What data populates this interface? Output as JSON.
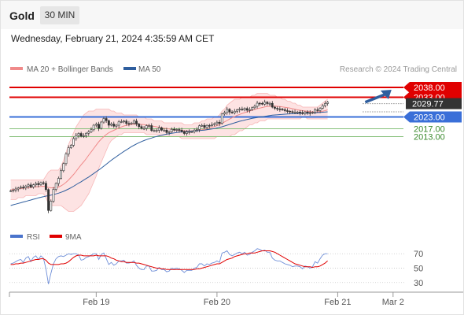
{
  "header": {
    "instrument": "Gold",
    "timeframe": "30 MIN",
    "datetime": "Wednesday, February 21, 2024 4:35:59 AM CET"
  },
  "legend": {
    "items": [
      {
        "label": "MA 20 + Bollinger Bands",
        "color": "#f08a8a"
      },
      {
        "label": "MA 50",
        "color": "#2f5e9e"
      }
    ],
    "credit": "Research © 2024 Trading Central"
  },
  "rsi_legend": {
    "items": [
      {
        "label": "RSI",
        "color": "#4a74cc"
      },
      {
        "label": "9MA",
        "color": "#e00000"
      }
    ]
  },
  "colors": {
    "resistance": "#e00000",
    "pivot": "#3a6fd8",
    "support": "#86c07a",
    "last": "#333333",
    "arrow": "#2f5e9e",
    "candle": "#333333",
    "band_fill": "#fde3e3"
  },
  "chart_data": [
    {
      "type": "candlestick",
      "title": "",
      "ylim": [
        1968,
        2042
      ],
      "x_tick_labels": [
        {
          "label": "Feb 19",
          "bar": 34
        },
        {
          "label": "Feb 20",
          "bar": 82
        },
        {
          "label": "Feb 21",
          "bar": 130
        },
        {
          "label": "Mar 2",
          "bar": 152
        }
      ],
      "bars_total": 156,
      "current_bar": 140,
      "key_levels": [
        {
          "label": "2038.00",
          "value": 2038.0,
          "role": "resistance"
        },
        {
          "label": "2033.00",
          "value": 2033.0,
          "role": "resistance"
        },
        {
          "label": "2029.77",
          "value": 2029.77,
          "role": "last"
        },
        {
          "label": "2023.00",
          "value": 2023.0,
          "role": "pivot"
        },
        {
          "label": "2017.00",
          "value": 2017.0,
          "role": "support"
        },
        {
          "label": "2013.00",
          "value": 2013.0,
          "role": "support"
        }
      ],
      "forecast": {
        "from": 2030.5,
        "to": 2038.0,
        "bars": 12
      },
      "close": [
        1985.5,
        1985.8,
        1986.4,
        1986.9,
        1987.3,
        1987.0,
        1987.9,
        1988.5,
        1987.4,
        1988.5,
        1989.2,
        1988.6,
        1989.6,
        1989.3,
        1986.1,
        1975.5,
        1980.2,
        1986.2,
        1989.2,
        1991.8,
        1995.7,
        1999.3,
        2004.2,
        2007.4,
        2008.6,
        2012.0,
        2013.6,
        2014.6,
        2013.2,
        2013.5,
        2014.7,
        2015.4,
        2016.5,
        2018.8,
        2019.3,
        2017.2,
        2020.4,
        2022.2,
        2021.1,
        2018.8,
        2019.4,
        2018.3,
        2018.8,
        2020.5,
        2020.6,
        2020.9,
        2019.7,
        2019.6,
        2019.9,
        2020.9,
        2019.4,
        2018.1,
        2017.2,
        2017.2,
        2018.6,
        2018.6,
        2016.1,
        2016.1,
        2016.2,
        2017.5,
        2016.3,
        2016.3,
        2015.1,
        2015.5,
        2016.7,
        2016.5,
        2016.6,
        2016.3,
        2015.6,
        2014.6,
        2015.4,
        2015.5,
        2015.5,
        2016.3,
        2016.6,
        2018.5,
        2018.7,
        2017.7,
        2018.7,
        2018.6,
        2019.1,
        2019.6,
        2020.3,
        2019.7,
        2024.5,
        2025.2,
        2026.9,
        2025.5,
        2025.1,
        2025.9,
        2026.6,
        2027.0,
        2026.7,
        2027.3,
        2026.4,
        2026.7,
        2027.7,
        2028.4,
        2030.0,
        2029.9,
        2029.5,
        2030.5,
        2029.8,
        2029.9,
        2028.0,
        2027.4,
        2027.1,
        2027.0,
        2026.7,
        2026.2,
        2025.9,
        2025.7,
        2025.3,
        2025.5,
        2025.5,
        2025.2,
        2024.7,
        2025.5,
        2025.2,
        2025.0,
        2025.3,
        2026.6,
        2026.3,
        2027.4,
        2028.7,
        2029.8,
        2030.5
      ],
      "ma20": [
        1986.0,
        1986.1,
        1986.3,
        1986.5,
        1986.6,
        1986.8,
        1986.9,
        1987.1,
        1987.2,
        1987.4,
        1987.5,
        1987.6,
        1987.7,
        1987.8,
        1987.6,
        1987.2,
        1987.0,
        1987.0,
        1987.1,
        1987.4,
        1988.0,
        1988.8,
        1989.8,
        1991.0,
        1992.4,
        1993.8,
        1995.4,
        1997.1,
        1998.7,
        2000.2,
        2001.8,
        2003.6,
        2005.3,
        2007.0,
        2008.7,
        2010.4,
        2011.8,
        2013.0,
        2014.1,
        2015.0,
        2015.6,
        2016.2,
        2016.8,
        2017.4,
        2017.9,
        2018.4,
        2018.7,
        2019.0,
        2019.2,
        2019.4,
        2019.4,
        2019.3,
        2019.2,
        2019.1,
        2018.9,
        2018.7,
        2018.4,
        2018.2,
        2018.0,
        2017.7,
        2017.5,
        2017.3,
        2017.1,
        2016.9,
        2016.7,
        2016.5,
        2016.3,
        2016.2,
        2016.1,
        2016.0,
        2015.9,
        2015.9,
        2015.9,
        2016.0,
        2016.1,
        2016.3,
        2016.5,
        2016.7,
        2017.0,
        2017.3,
        2017.7,
        2018.1,
        2018.6,
        2019.1,
        2019.8,
        2020.5,
        2021.2,
        2021.9,
        2022.6,
        2023.2,
        2023.8,
        2024.3,
        2024.8,
        2025.2,
        2025.6,
        2026.0,
        2026.4,
        2026.8,
        2027.2,
        2027.5,
        2027.8,
        2028.1,
        2028.3,
        2028.4,
        2028.5,
        2028.5,
        2028.4,
        2028.3,
        2028.1,
        2027.9,
        2027.7,
        2027.5,
        2027.2,
        2026.9,
        2026.6,
        2026.4,
        2026.2,
        2026.0,
        2025.8,
        2025.7,
        2025.6,
        2025.6,
        2025.6,
        2025.7,
        2025.9,
        2026.2,
        2026.6
      ],
      "bb_upper": [
        1991,
        1991,
        1991,
        1991,
        1991,
        1991,
        1991,
        1991,
        1991,
        1991,
        1991,
        1991,
        1991,
        1991,
        1993,
        1995,
        1996,
        1996,
        1996,
        1996,
        1998,
        2001,
        2005,
        2009,
        2012,
        2015,
        2018,
        2020,
        2022,
        2024,
        2025,
        2026,
        2026,
        2026,
        2027,
        2027,
        2027,
        2027,
        2027,
        2027,
        2026,
        2026,
        2025,
        2025,
        2025,
        2024,
        2024,
        2024,
        2024,
        2024,
        2024,
        2023,
        2023,
        2023,
        2022,
        2022,
        2022,
        2021,
        2021,
        2021,
        2021,
        2020,
        2020,
        2020,
        2020,
        2020,
        2020,
        2020,
        2020,
        2019,
        2019,
        2019,
        2019,
        2020,
        2020,
        2020,
        2021,
        2021,
        2022,
        2022,
        2022,
        2023,
        2023,
        2024,
        2026,
        2027,
        2029,
        2030,
        2031,
        2032,
        2032,
        2032,
        2033,
        2033,
        2033,
        2033,
        2034,
        2034,
        2035,
        2035,
        2035,
        2035,
        2035,
        2034,
        2034,
        2034,
        2033,
        2033,
        2032,
        2032,
        2031,
        2031,
        2030,
        2030,
        2029,
        2029,
        2028,
        2028,
        2028,
        2028,
        2028,
        2028,
        2028,
        2029,
        2030,
        2031,
        2032
      ],
      "bb_lower": [
        1981,
        1981,
        1981,
        1982,
        1982,
        1982,
        1983,
        1983,
        1983,
        1983,
        1983,
        1984,
        1984,
        1984,
        1982,
        1979,
        1978,
        1978,
        1978,
        1978,
        1978,
        1977,
        1976,
        1975,
        1975,
        1975,
        1976,
        1977,
        1978,
        1980,
        1982,
        1984,
        1987,
        1990,
        1993,
        1997,
        2000,
        2003,
        2006,
        2009,
        2011,
        2012,
        2013,
        2014,
        2014,
        2015,
        2015,
        2015,
        2015,
        2015,
        2015,
        2015,
        2015,
        2015,
        2014,
        2014,
        2014,
        2014,
        2014,
        2014,
        2013,
        2013,
        2013,
        2013,
        2013,
        2013,
        2013,
        2013,
        2012,
        2012,
        2012,
        2012,
        2012,
        2012,
        2012,
        2012,
        2012,
        2012,
        2012,
        2012,
        2012,
        2012,
        2013,
        2013,
        2013,
        2013,
        2013,
        2013,
        2014,
        2014,
        2015,
        2016,
        2016,
        2017,
        2018,
        2019,
        2019,
        2020,
        2020,
        2021,
        2021,
        2021,
        2022,
        2022,
        2022,
        2022,
        2022,
        2022,
        2022,
        2022,
        2022,
        2022,
        2022,
        2022,
        2022,
        2022,
        2023,
        2023,
        2022,
        2022,
        2022,
        2022,
        2022,
        2022,
        2022,
        2022,
        2022
      ],
      "ma50": [
        1978.0,
        1978.4,
        1978.7,
        1979.1,
        1979.4,
        1979.8,
        1980.1,
        1980.5,
        1980.8,
        1981.2,
        1981.5,
        1981.9,
        1982.2,
        1982.5,
        1982.8,
        1983.0,
        1983.3,
        1983.6,
        1983.9,
        1984.3,
        1984.7,
        1985.2,
        1985.8,
        1986.4,
        1987.1,
        1987.8,
        1988.6,
        1989.4,
        1990.1,
        1990.9,
        1991.7,
        1992.5,
        1993.4,
        1994.3,
        1995.2,
        1996.1,
        1997.0,
        1998.0,
        1999.0,
        2000.0,
        2001.0,
        2001.9,
        2002.8,
        2003.7,
        2004.6,
        2005.5,
        2006.3,
        2007.1,
        2007.9,
        2008.6,
        2009.3,
        2009.9,
        2010.5,
        2011.0,
        2011.5,
        2011.9,
        2012.3,
        2012.7,
        2013.1,
        2013.4,
        2013.7,
        2014.0,
        2014.3,
        2014.5,
        2014.7,
        2014.9,
        2015.1,
        2015.3,
        2015.4,
        2015.5,
        2015.6,
        2015.7,
        2015.8,
        2015.9,
        2016.0,
        2016.1,
        2016.2,
        2016.3,
        2016.5,
        2016.7,
        2016.9,
        2017.1,
        2017.4,
        2017.7,
        2018.0,
        2018.4,
        2018.8,
        2019.2,
        2019.6,
        2020.0,
        2020.4,
        2020.8,
        2021.1,
        2021.4,
        2021.7,
        2022.0,
        2022.3,
        2022.5,
        2022.7,
        2022.9,
        2023.1,
        2023.3,
        2023.5,
        2023.7,
        2023.9,
        2024.0,
        2024.1,
        2024.2,
        2024.3,
        2024.4,
        2024.5,
        2024.6,
        2024.6,
        2024.7,
        2024.7,
        2024.8,
        2024.8,
        2024.9,
        2024.9,
        2025.0,
        2025.0,
        2025.1,
        2025.2,
        2025.3,
        2025.4,
        2025.5,
        2025.6
      ]
    },
    {
      "type": "line",
      "title": "",
      "ylim": [
        20,
        80
      ],
      "y_ticks": [
        70,
        50,
        30
      ],
      "series": [
        {
          "name": "RSI",
          "values": [
            56,
            57,
            59,
            61,
            62,
            58,
            64,
            66,
            59,
            65,
            67,
            62,
            67,
            64,
            49,
            28,
            43,
            56,
            63,
            66,
            67,
            66,
            68,
            70,
            69,
            70,
            70,
            68,
            61,
            62,
            65,
            66,
            68,
            70,
            70,
            62,
            69,
            71,
            63,
            55,
            58,
            54,
            56,
            60,
            60,
            61,
            57,
            57,
            58,
            60,
            54,
            50,
            48,
            48,
            53,
            53,
            46,
            46,
            47,
            51,
            48,
            48,
            45,
            46,
            50,
            49,
            50,
            49,
            47,
            44,
            47,
            47,
            47,
            50,
            51,
            56,
            56,
            53,
            56,
            55,
            57,
            58,
            60,
            58,
            71,
            72,
            74,
            69,
            67,
            69,
            71,
            72,
            70,
            72,
            68,
            69,
            72,
            74,
            77,
            76,
            74,
            75,
            72,
            72,
            64,
            61,
            60,
            60,
            58,
            56,
            55,
            54,
            52,
            53,
            53,
            52,
            49,
            53,
            52,
            50,
            52,
            59,
            57,
            63,
            68,
            70,
            70
          ]
        },
        {
          "name": "9MA",
          "values": [
            55,
            55,
            56,
            56,
            57,
            57,
            58,
            59,
            60,
            61,
            62,
            62,
            63,
            63,
            61,
            57,
            55,
            55,
            55,
            55,
            56,
            56,
            57,
            59,
            62,
            65,
            67,
            68,
            68,
            67,
            67,
            67,
            67,
            67,
            68,
            67,
            67,
            67,
            67,
            66,
            64,
            63,
            61,
            60,
            59,
            59,
            58,
            58,
            58,
            58,
            57,
            57,
            56,
            55,
            54,
            53,
            52,
            51,
            50,
            50,
            49,
            49,
            48,
            48,
            48,
            48,
            48,
            48,
            48,
            48,
            48,
            48,
            48,
            48,
            49,
            49,
            50,
            51,
            52,
            53,
            54,
            55,
            56,
            56,
            58,
            60,
            62,
            63,
            64,
            66,
            67,
            68,
            69,
            70,
            70,
            71,
            71,
            71,
            72,
            73,
            74,
            74,
            74,
            74,
            73,
            72,
            70,
            68,
            66,
            64,
            62,
            60,
            58,
            56,
            55,
            54,
            53,
            52,
            52,
            52,
            51,
            52,
            52,
            53,
            55,
            57,
            60
          ]
        }
      ]
    }
  ]
}
